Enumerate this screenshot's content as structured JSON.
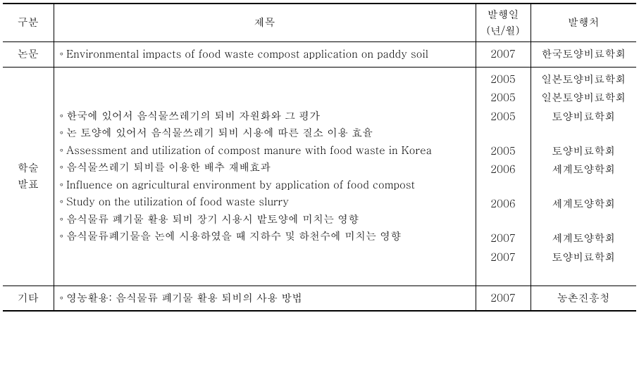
{
  "headers": {
    "category": "구분",
    "title": "제목",
    "date": "발행일\n(년/월)",
    "publisher": "발행처"
  },
  "rows": [
    {
      "category": "논문",
      "items": [
        {
          "title": "Environmental impacts of food waste compost application on paddy soil",
          "date": "2007",
          "publisher": "한국토양비료학회"
        }
      ]
    },
    {
      "category": "학술\n발표",
      "items": [
        {
          "title": "한국에 있어서 음식물쓰레기의 퇴비 자원화와 그 평가",
          "date": "2005",
          "publisher": "일본토양비료학회"
        },
        {
          "title": "논 토양에 있어서 음식물쓰레기 퇴비 시용에 따른 질소 이용 효율",
          "date": "2005",
          "publisher": "일본토양비료학회"
        },
        {
          "title": "Assessment and utilization of compost manure with food waste in Korea",
          "date": "2005",
          "publisher": "토양비료학회"
        },
        {
          "title": "음식물쓰레기 퇴비를 이용한 배추 재배효과",
          "date": "2005",
          "publisher": "토양비료학회"
        },
        {
          "title": "Influence on agricultural environment by application of food compost",
          "date": "2006",
          "publisher": "세계토양학회"
        },
        {
          "title": "Study on the utilization of food waste slurry",
          "date": "2006",
          "publisher": "세계토양학회"
        },
        {
          "title": "음식물류 폐기물 활용 퇴비 장기 시용시 밭토양에 미치는 영향",
          "date": "2007",
          "publisher": "세계토양학회"
        },
        {
          "title": "음식물류폐기물을 논에 시용하였을 때 지하수 및 하천수에 미치는 영향",
          "date": "2007",
          "publisher": "토양비료학회"
        }
      ]
    },
    {
      "category": "기타",
      "items": [
        {
          "title": "영농활용: 음식물류 폐기물 활용 퇴비의 사용 방법",
          "date": "2007",
          "publisher": "농촌진흥청"
        }
      ]
    }
  ]
}
